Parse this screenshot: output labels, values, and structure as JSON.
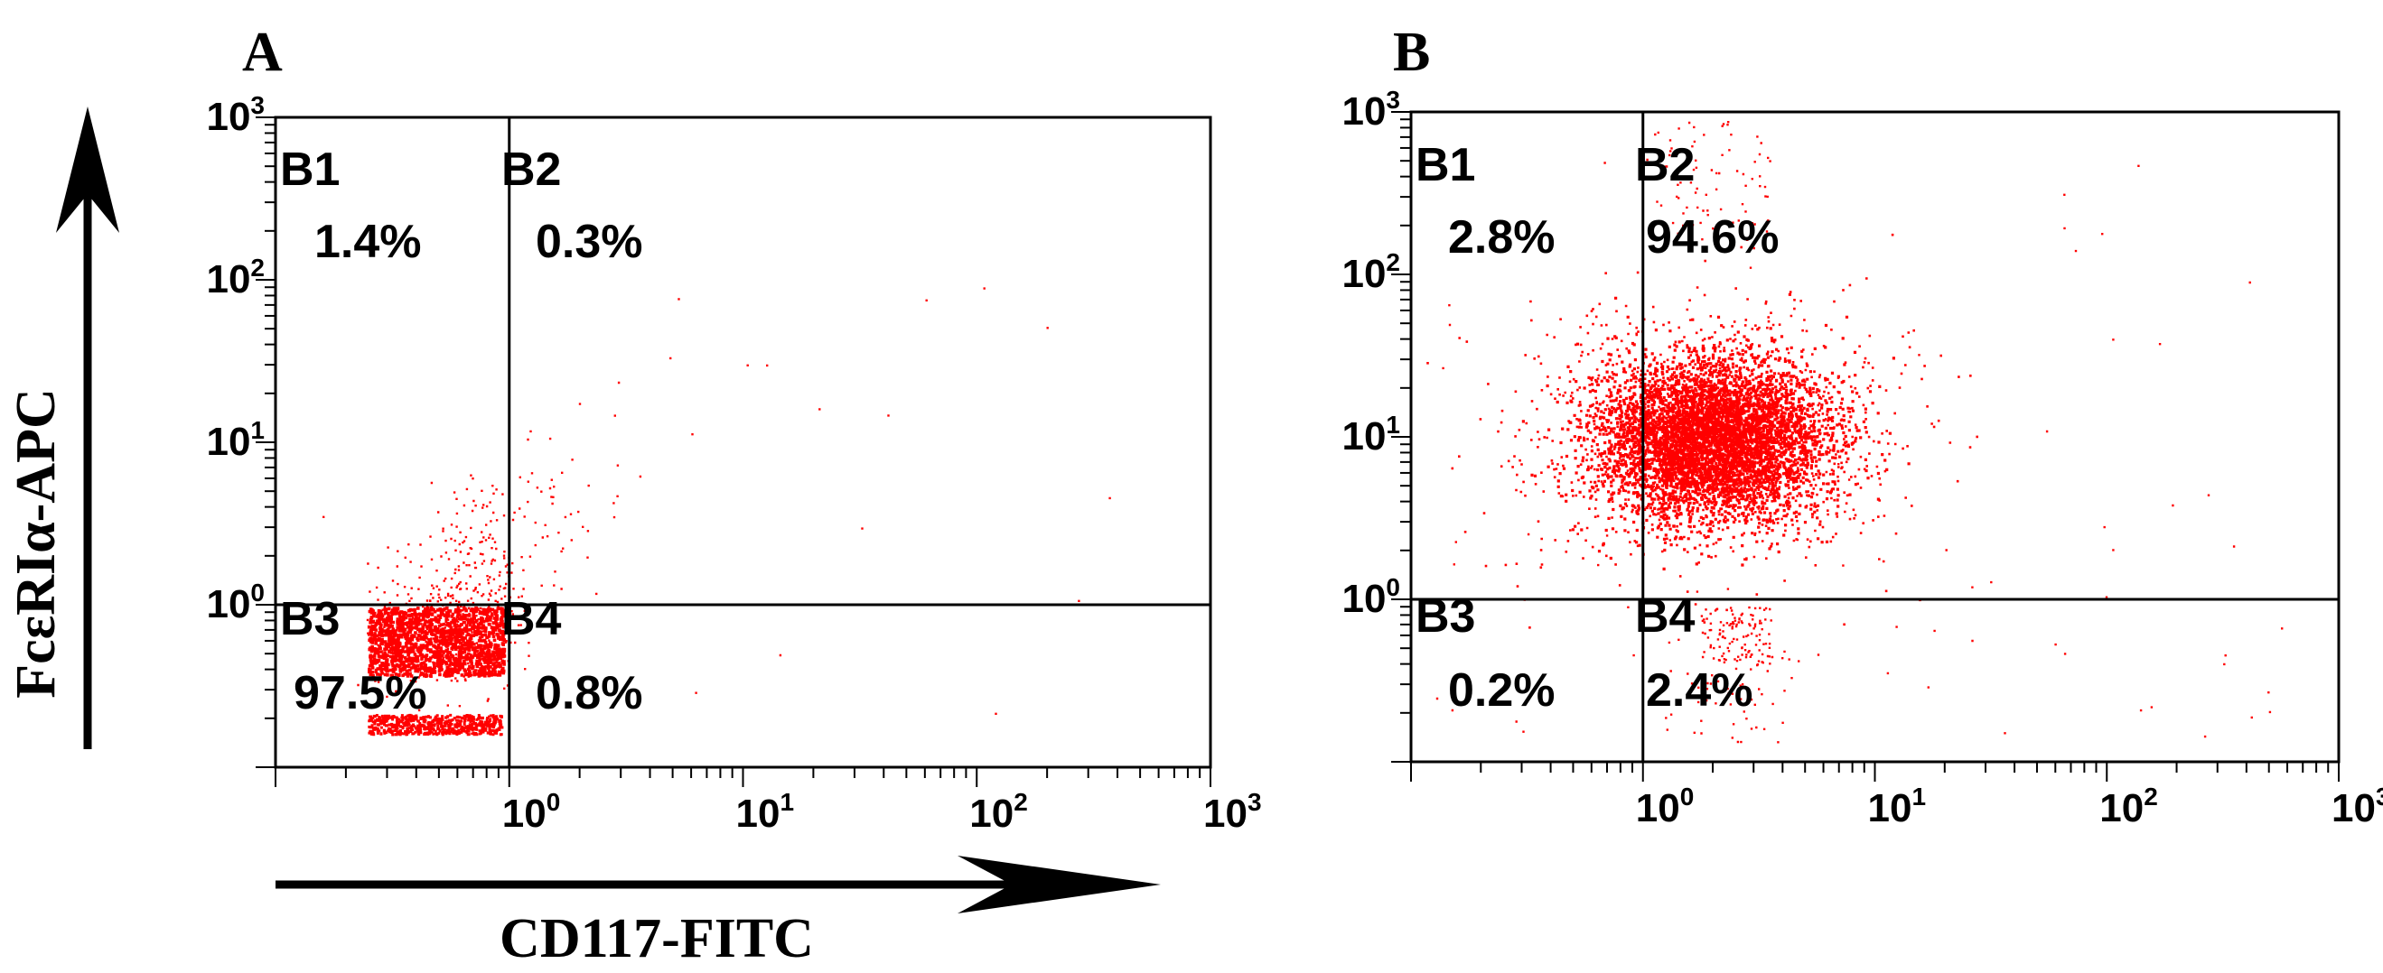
{
  "chart_data": [
    {
      "type": "scatter",
      "panel_label": "A",
      "xlabel": "CD117-FITC",
      "ylabel": "FcεRIα-APC",
      "x_scale": "log",
      "y_scale": "log",
      "xlim": [
        0.1,
        1000
      ],
      "ylim": [
        0.1,
        1000
      ],
      "x_ticks": [
        {
          "base": "10",
          "exp": "0",
          "value": 1
        },
        {
          "base": "10",
          "exp": "1",
          "value": 10
        },
        {
          "base": "10",
          "exp": "2",
          "value": 100
        },
        {
          "base": "10",
          "exp": "3",
          "value": 1000
        }
      ],
      "y_ticks": [
        {
          "base": "10",
          "exp": "0",
          "value": 1
        },
        {
          "base": "10",
          "exp": "1",
          "value": 10
        },
        {
          "base": "10",
          "exp": "2",
          "value": 100
        },
        {
          "base": "10",
          "exp": "3",
          "value": 1000
        }
      ],
      "gate": {
        "x": 1,
        "y": 1
      },
      "point_color": "#ff0000",
      "quadrants": [
        {
          "name": "B1",
          "percent": "1.4%"
        },
        {
          "name": "B2",
          "percent": "0.3%"
        },
        {
          "name": "B3",
          "percent": "97.5%"
        },
        {
          "name": "B4",
          "percent": "0.8%"
        }
      ]
    },
    {
      "type": "scatter",
      "panel_label": "B",
      "x_scale": "log",
      "y_scale": "log",
      "xlim": [
        0.1,
        1000
      ],
      "ylim": [
        0.1,
        1000
      ],
      "x_ticks": [
        {
          "base": "10",
          "exp": "0",
          "value": 1
        },
        {
          "base": "10",
          "exp": "1",
          "value": 10
        },
        {
          "base": "10",
          "exp": "2",
          "value": 100
        },
        {
          "base": "10",
          "exp": "3",
          "value": 1000
        }
      ],
      "y_ticks": [
        {
          "base": "10",
          "exp": "0",
          "value": 1
        },
        {
          "base": "10",
          "exp": "1",
          "value": 10
        },
        {
          "base": "10",
          "exp": "2",
          "value": 100
        },
        {
          "base": "10",
          "exp": "3",
          "value": 1000
        }
      ],
      "gate": {
        "x": 1,
        "y": 1
      },
      "point_color": "#ff0000",
      "quadrants": [
        {
          "name": "B1",
          "percent": "2.8%"
        },
        {
          "name": "B2",
          "percent": "94.6%"
        },
        {
          "name": "B3",
          "percent": "0.2%"
        },
        {
          "name": "B4",
          "percent": "2.4%"
        }
      ]
    }
  ]
}
